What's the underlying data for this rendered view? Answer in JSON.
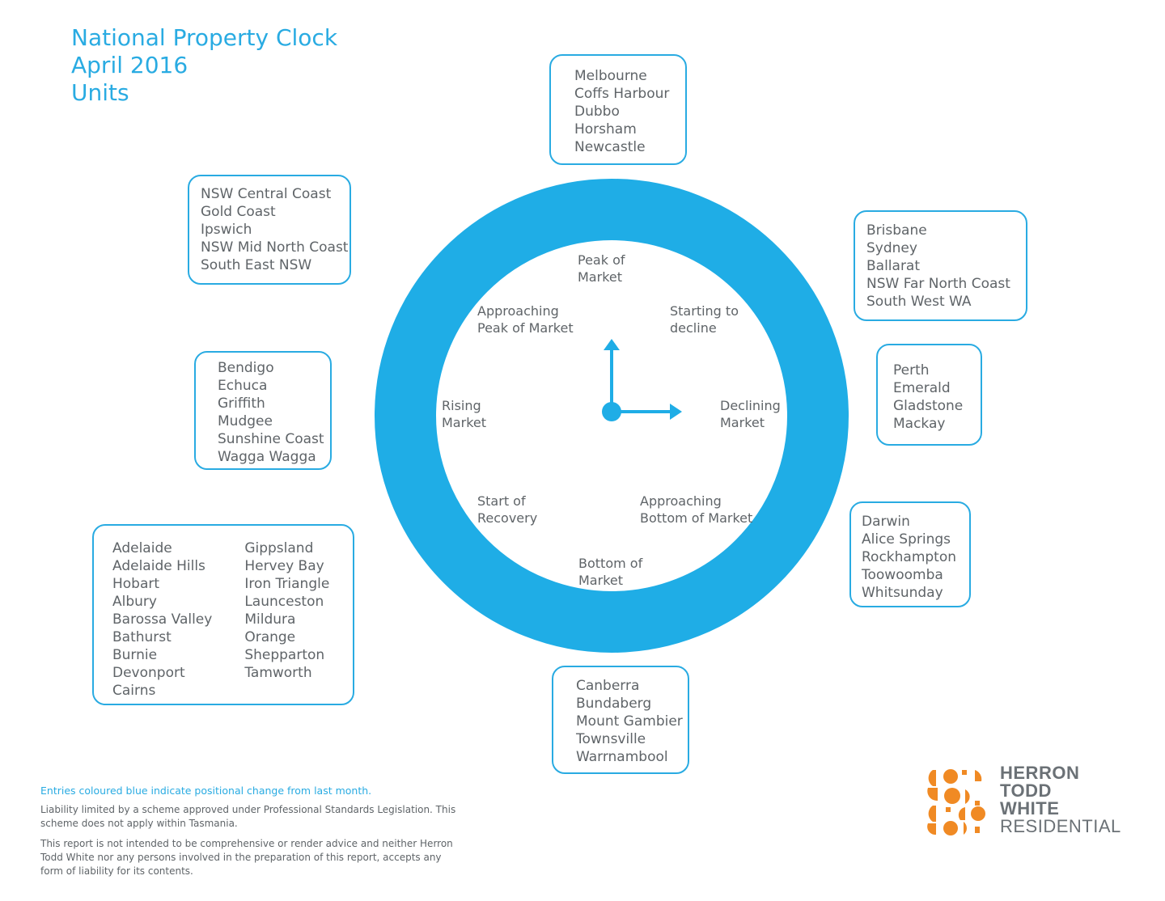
{
  "title": {
    "line1": "National Property Clock",
    "line2": "April 2016",
    "line3": "Units"
  },
  "phases": {
    "peak": [
      "Peak of",
      "Market"
    ],
    "starting_decline": [
      "Starting to",
      "decline"
    ],
    "declining": [
      "Declining",
      "Market"
    ],
    "approaching_bottom": [
      "Approaching",
      "Bottom of Market"
    ],
    "bottom": [
      "Bottom of",
      "Market"
    ],
    "start_recovery": [
      "Start of",
      "Recovery"
    ],
    "rising": [
      "Rising",
      "Market"
    ],
    "approaching_peak": [
      "Approaching",
      "Peak of Market"
    ]
  },
  "boxes": {
    "peak": [
      "Melbourne",
      "Coffs Harbour",
      "Dubbo",
      "Horsham",
      "Newcastle"
    ],
    "starting_decline": [
      "Brisbane",
      "Sydney",
      "Ballarat",
      "NSW Far North Coast",
      "South West WA"
    ],
    "declining": [
      "Perth",
      "Emerald",
      "Gladstone",
      "Mackay"
    ],
    "approaching_bottom": [
      "Darwin",
      "Alice Springs",
      "Rockhampton",
      "Toowoomba",
      "Whitsunday"
    ],
    "bottom": [
      "Canberra",
      "Bundaberg",
      "Mount Gambier",
      "Townsville",
      "Warrnambool"
    ],
    "start_recovery_col1": [
      "Adelaide",
      "Adelaide Hills",
      "Hobart",
      "Albury",
      "Barossa Valley",
      "Bathurst",
      "Burnie",
      "Devonport",
      "Cairns"
    ],
    "start_recovery_col2": [
      "Gippsland",
      "Hervey Bay",
      "Iron Triangle",
      "Launceston",
      "Mildura",
      "Orange",
      "Shepparton",
      "Tamworth"
    ],
    "rising": [
      "Bendigo",
      "Echuca",
      "Griffith",
      "Mudgee",
      "Sunshine Coast",
      "Wagga Wagga"
    ],
    "approaching_peak": [
      "NSW Central Coast",
      "Gold Coast",
      "Ipswich",
      "NSW Mid North Coast",
      "South East NSW"
    ]
  },
  "footnotes": {
    "blue": "Entries coloured blue indicate positional change from last month.",
    "liability": "Liability limited by a scheme approved under Professional Standards Legislation. This scheme does not apply within Tasmania.",
    "disclaimer": "This report is not intended to be comprehensive or render advice and neither Herron Todd White nor any persons involved in the preparation of this report, accepts any form of liability for its contents."
  },
  "logo": {
    "line1": "HERRON",
    "line2": "TODD",
    "line3": "WHITE",
    "line4": "RESIDENTIAL"
  },
  "colors": {
    "accent": "#29abe2",
    "ring": "#1fade6",
    "logo_orange": "#f08a24",
    "text": "#5f6468"
  }
}
